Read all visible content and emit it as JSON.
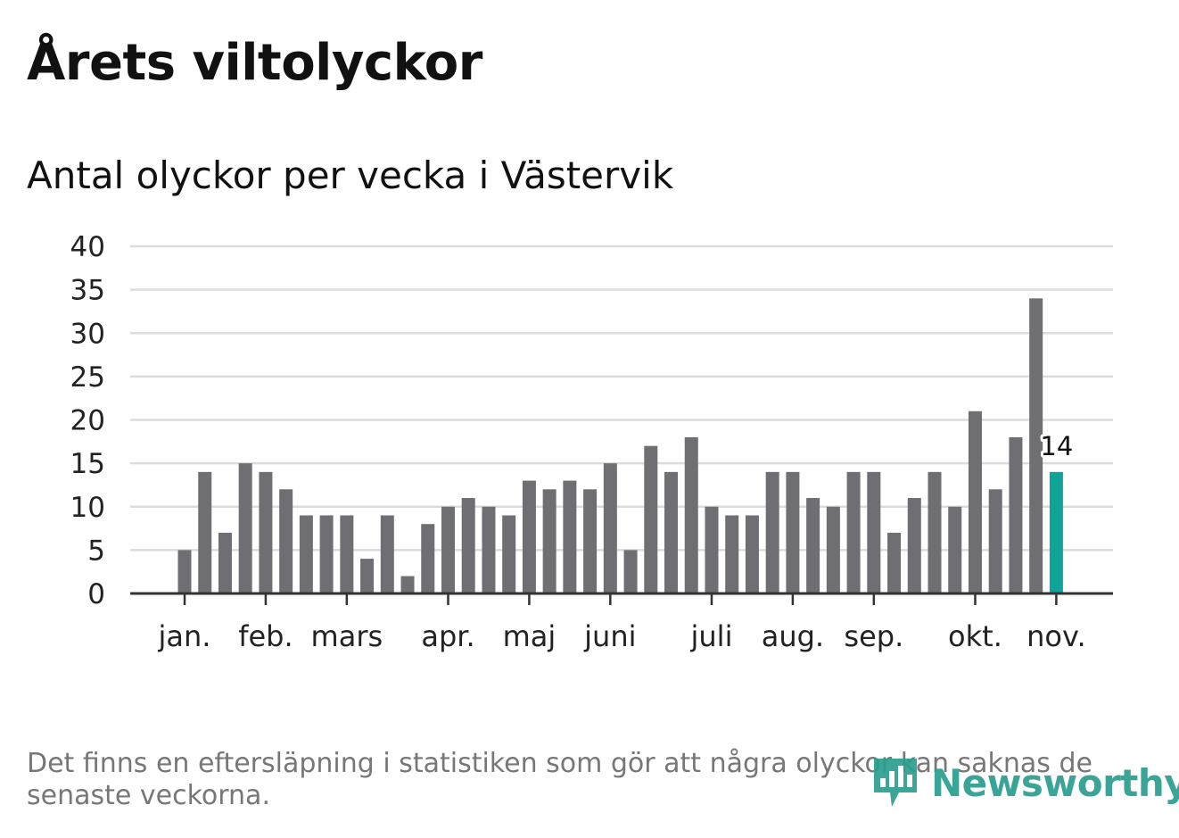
{
  "header": {
    "title": "Årets viltolyckor",
    "subtitle": "Antal olyckor per vecka i Västervik"
  },
  "footer": {
    "note": "Det finns en eftersläpning i statistiken som gör att några olyckor kan saknas de senaste veckorna.",
    "brand": "Newsworthy"
  },
  "colors": {
    "bar": "#6f6e73",
    "highlight": "#0fa39a",
    "grid": "#dcdcdc",
    "axis": "#333333",
    "brand": "#2a9d8f"
  },
  "chart_data": {
    "type": "bar",
    "title": "Antal olyckor per vecka i Västervik",
    "xlabel": "",
    "ylabel": "",
    "ylim": [
      0,
      40
    ],
    "yticks": [
      0,
      5,
      10,
      15,
      20,
      25,
      30,
      35,
      40
    ],
    "grid": true,
    "weeks": [
      1,
      2,
      3,
      4,
      5,
      6,
      7,
      8,
      9,
      10,
      11,
      12,
      13,
      14,
      15,
      16,
      17,
      18,
      19,
      20,
      21,
      22,
      23,
      24,
      25,
      26,
      27,
      28,
      29,
      30,
      31,
      32,
      33,
      34,
      35,
      36,
      37,
      38,
      39,
      40,
      41,
      42,
      43,
      44
    ],
    "values": [
      5,
      14,
      7,
      15,
      14,
      12,
      9,
      9,
      9,
      4,
      9,
      2,
      8,
      10,
      11,
      10,
      9,
      13,
      12,
      13,
      12,
      15,
      5,
      17,
      14,
      18,
      10,
      9,
      9,
      14,
      14,
      11,
      10,
      14,
      14,
      7,
      11,
      14,
      10,
      21,
      12,
      18,
      34,
      14
    ],
    "highlight_index": 43,
    "highlight_label": "14",
    "month_ticks": [
      {
        "label": "jan.",
        "week": 1
      },
      {
        "label": "feb.",
        "week": 5
      },
      {
        "label": "mars",
        "week": 9
      },
      {
        "label": "apr.",
        "week": 14
      },
      {
        "label": "maj",
        "week": 18
      },
      {
        "label": "juni",
        "week": 22
      },
      {
        "label": "juli",
        "week": 27
      },
      {
        "label": "aug.",
        "week": 31
      },
      {
        "label": "sep.",
        "week": 35
      },
      {
        "label": "okt.",
        "week": 40
      },
      {
        "label": "nov.",
        "week": 44
      }
    ]
  }
}
